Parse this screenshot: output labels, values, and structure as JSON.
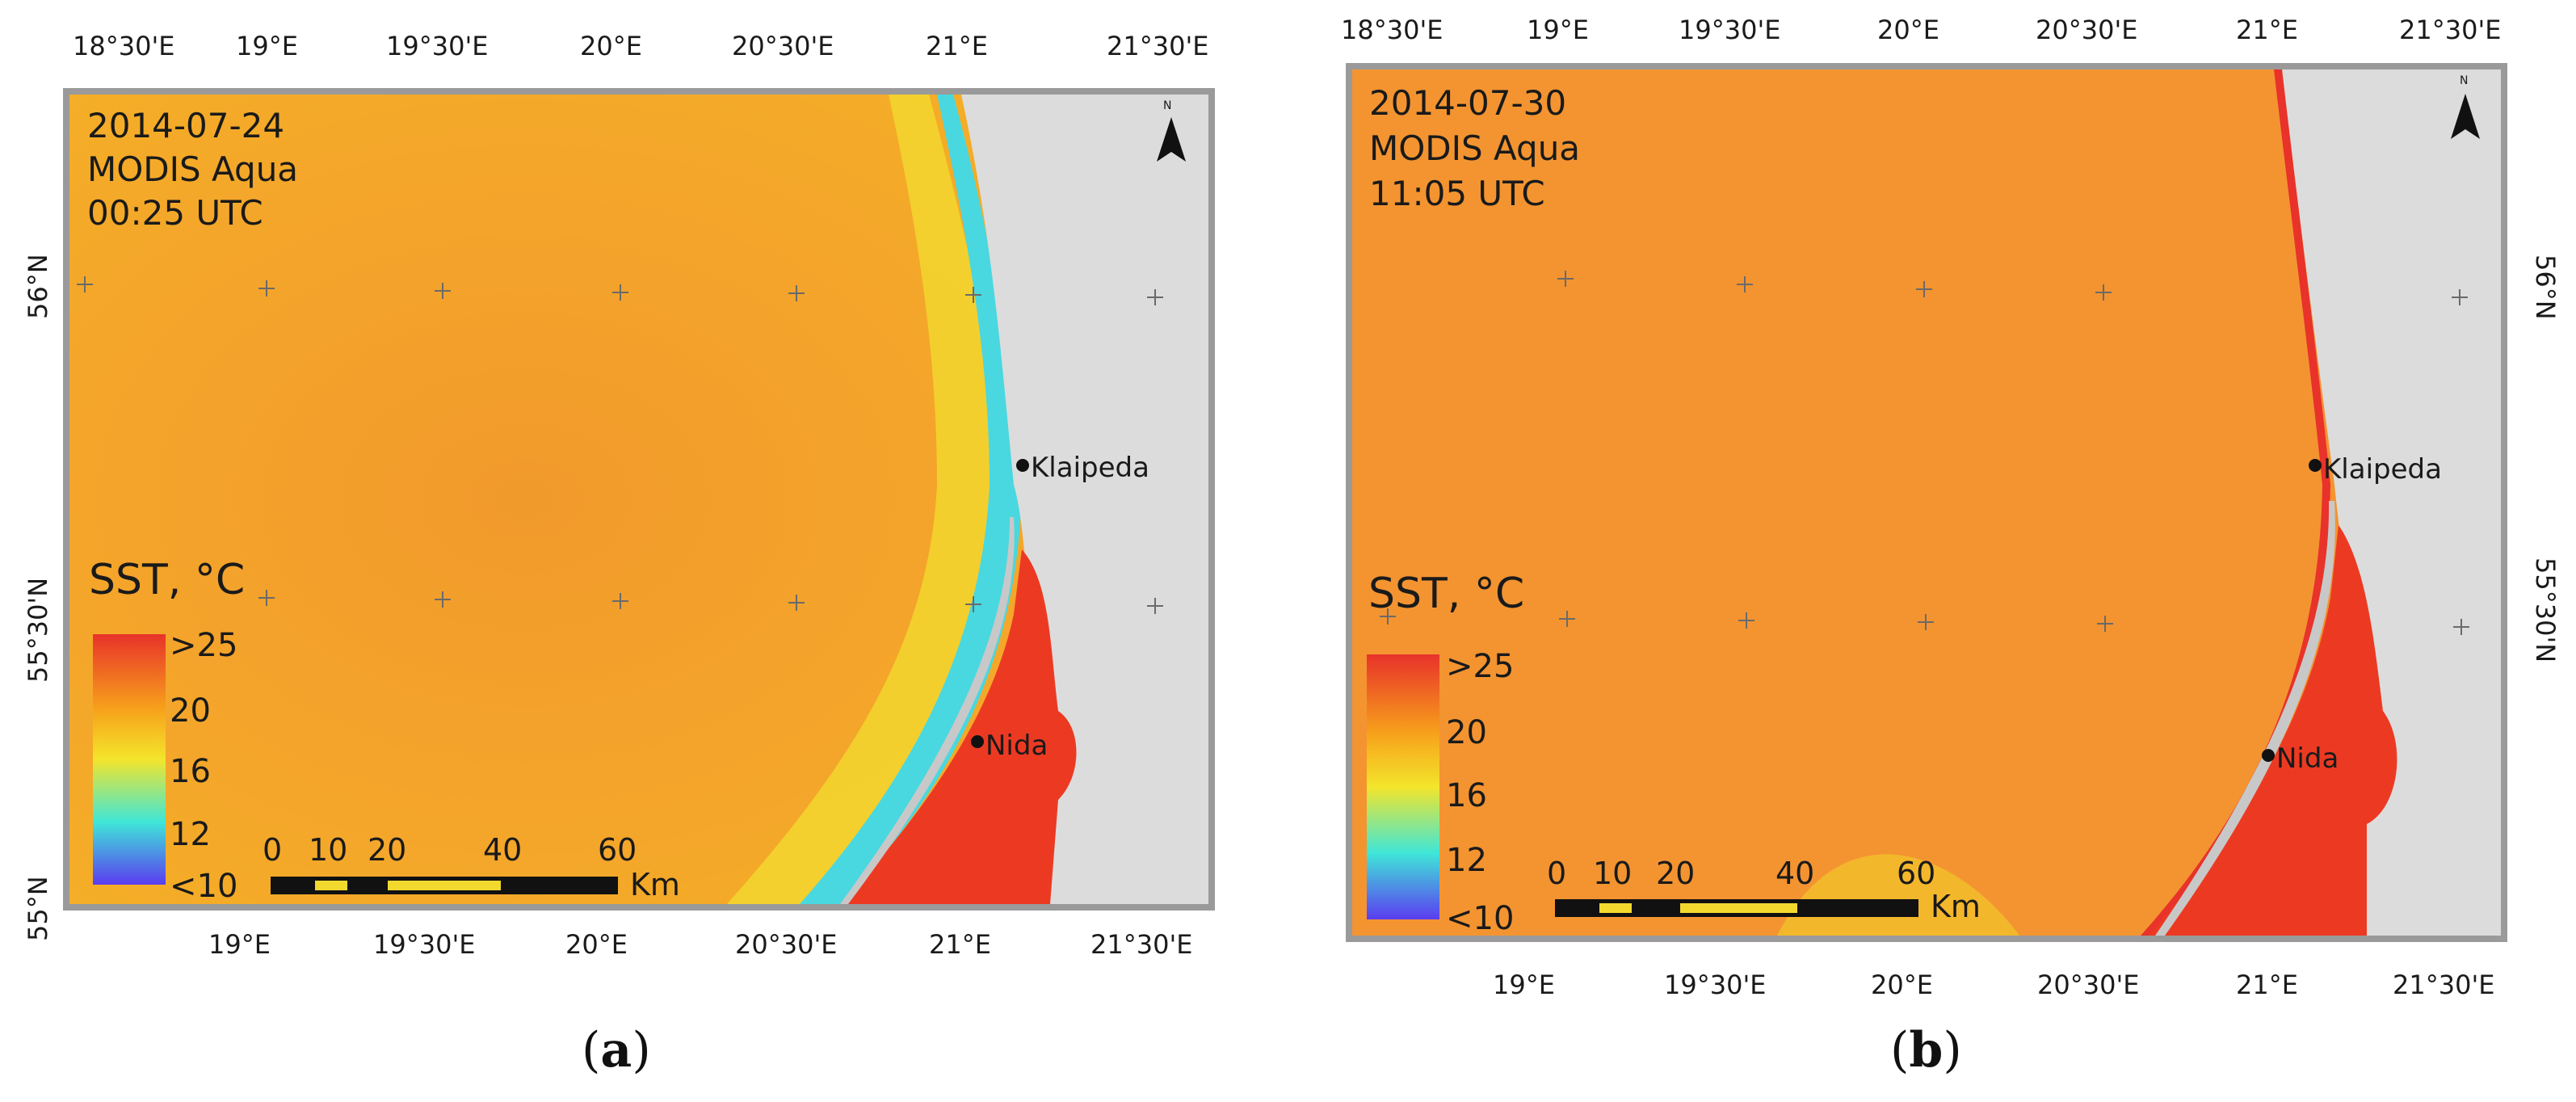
{
  "panels": [
    {
      "date": "2014-07-24",
      "sensor": "MODIS Aqua",
      "time": "00:25 UTC",
      "caption_letter": "a",
      "top_lon_labels": [
        "18°30'E",
        "19°E",
        "19°30'E",
        "20°E",
        "20°30'E",
        "21°E",
        "21°30'E"
      ],
      "bottom_lon_labels": [
        "19°E",
        "19°30'E",
        "20°E",
        "20°30'E",
        "21°E",
        "21°30'E"
      ],
      "left_lat_labels": [
        "56°N",
        "55°30'N",
        "55°N"
      ],
      "right_lat_labels": []
    },
    {
      "date": "2014-07-30",
      "sensor": "MODIS Aqua",
      "time": "11:05 UTC",
      "caption_letter": "b",
      "top_lon_labels": [
        "18°30'E",
        "19°E",
        "19°30'E",
        "20°E",
        "20°30'E",
        "21°E",
        "21°30'E"
      ],
      "bottom_lon_labels": [
        "19°E",
        "19°30'E",
        "20°E",
        "20°30'E",
        "21°E",
        "21°30'E"
      ],
      "left_lat_labels": [],
      "right_lat_labels": [
        "56°N",
        "55°30'N"
      ]
    }
  ],
  "legend": {
    "title": "SST, °C",
    "labels": [
      ">25",
      "20",
      "16",
      "12",
      "<10"
    ],
    "colors": [
      "#e8322a",
      "#f7a21b",
      "#f3e52b",
      "#3fe6d8",
      "#5b3cf0"
    ]
  },
  "scalebar": {
    "ticks": [
      "0",
      "10",
      "20",
      "40",
      "60"
    ],
    "unit": "Km"
  },
  "cities": [
    "Klaipeda",
    "Nida"
  ],
  "north_arrow": "N",
  "colors": {
    "sea_a": "#f2a52b",
    "sea_b": "#f39431",
    "land": "#dcdcdc",
    "lagoon": "#ec3a22",
    "frame": "#9a9a9a"
  }
}
